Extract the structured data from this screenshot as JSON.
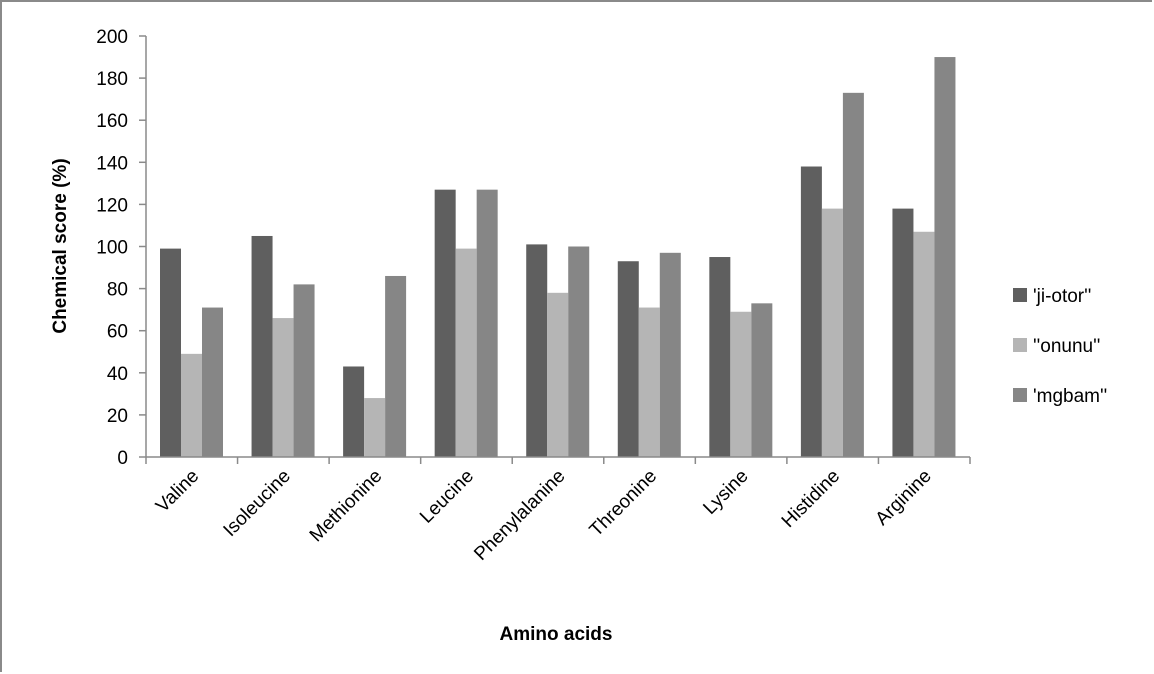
{
  "chart_data": {
    "type": "bar",
    "title": "",
    "xlabel": "Amino acids",
    "ylabel": "Chemical score (%)",
    "ylim": [
      0,
      200
    ],
    "yticks": [
      0,
      20,
      40,
      60,
      80,
      100,
      120,
      140,
      160,
      180,
      200
    ],
    "categories": [
      "Valine",
      "Isoleucine",
      "Methionine",
      "Leucine",
      "Phenylalanine",
      "Threonine",
      "Lysine",
      "Histidine",
      "Arginine"
    ],
    "series": [
      {
        "name": "'ji-otor''",
        "color": "#5f5f5f",
        "values": [
          99,
          105,
          43,
          127,
          101,
          93,
          95,
          138,
          118
        ]
      },
      {
        "name": "''onunu''",
        "color": "#b5b5b5",
        "values": [
          49,
          66,
          28,
          99,
          78,
          71,
          69,
          118,
          107
        ]
      },
      {
        "name": "'mgbam''",
        "color": "#868686",
        "values": [
          71,
          82,
          86,
          127,
          100,
          97,
          73,
          173,
          190
        ]
      }
    ],
    "grid": false,
    "legend_position": "right"
  }
}
